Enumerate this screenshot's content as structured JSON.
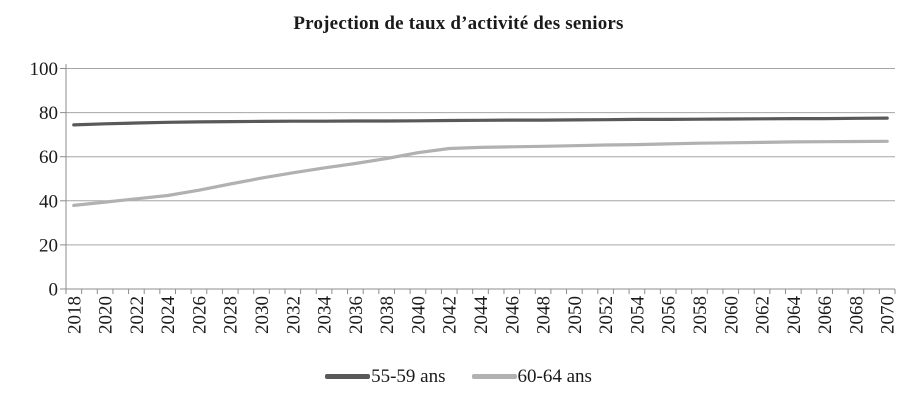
{
  "title": "Projection de taux d’activité des seniors",
  "colors": {
    "series_55_59": "#595959",
    "series_60_64": "#b1b1b1",
    "gridline": "#a6a6a6",
    "axis": "#8c8c8c",
    "text": "#1a1a1a",
    "background": "#ffffff"
  },
  "legend": [
    {
      "label": "55-59 ans",
      "color": "#595959"
    },
    {
      "label": "60-64 ans",
      "color": "#b1b1b1"
    }
  ],
  "chart_data": {
    "type": "line",
    "title": "Projection de taux d’activité des seniors",
    "x": [
      2018,
      2020,
      2022,
      2024,
      2026,
      2028,
      2030,
      2032,
      2034,
      2036,
      2038,
      2040,
      2042,
      2044,
      2046,
      2048,
      2050,
      2052,
      2054,
      2056,
      2058,
      2060,
      2062,
      2064,
      2066,
      2068,
      2070
    ],
    "series": [
      {
        "name": "55-59 ans",
        "color": "#595959",
        "values": [
          74.4,
          74.9,
          75.3,
          75.6,
          75.8,
          75.9,
          76.0,
          76.1,
          76.1,
          76.2,
          76.2,
          76.3,
          76.4,
          76.5,
          76.6,
          76.6,
          76.7,
          76.8,
          76.9,
          76.9,
          77.0,
          77.1,
          77.2,
          77.3,
          77.3,
          77.4,
          77.5
        ]
      },
      {
        "name": "60-64 ans",
        "color": "#b1b1b1",
        "values": [
          37.9,
          39.4,
          40.9,
          42.4,
          44.8,
          47.6,
          50.3,
          52.7,
          54.9,
          56.9,
          59.2,
          61.8,
          63.7,
          64.2,
          64.5,
          64.7,
          65.0,
          65.3,
          65.5,
          65.8,
          66.1,
          66.3,
          66.5,
          66.7,
          66.8,
          66.9,
          67.0
        ]
      }
    ],
    "xlabel": "",
    "ylabel": "",
    "ylim": [
      0,
      100
    ],
    "yticks": [
      0,
      20,
      40,
      60,
      80,
      100
    ],
    "x_minor_tick_interval_years": 1,
    "x_label_rotation_degrees": -90,
    "grid": "horizontal",
    "legend_position": "bottom"
  }
}
